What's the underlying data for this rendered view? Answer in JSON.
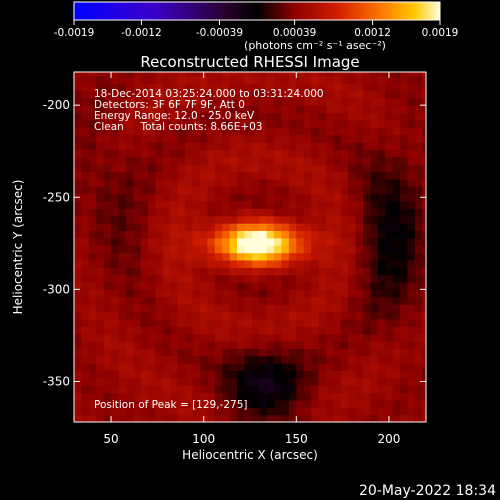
{
  "chart_data": {
    "type": "heatmap",
    "title": "Reconstructed RHESSI Image",
    "xlabel": "Heliocentric X (arcsec)",
    "ylabel": "Heliocentric Y (arcsec)",
    "xlim": [
      30,
      220
    ],
    "ylim": [
      -372,
      -182
    ],
    "xticks": [
      50,
      100,
      150,
      200
    ],
    "yticks": [
      -200,
      -250,
      -300,
      -350
    ],
    "colorbar": {
      "ticks": [
        "-0.0019",
        "-0.0012",
        "-0.00039",
        "0.00039",
        "0.0012",
        "0.0019"
      ],
      "tick_values": [
        -0.0019,
        -0.0012,
        -0.00039,
        0.00039,
        0.0012,
        0.0019
      ],
      "range": [
        -0.0019,
        0.0019
      ],
      "unit": "(photons cm⁻² s⁻¹ asec⁻²)"
    },
    "info_lines": [
      "18-Dec-2014 03:25:24.000 to 03:31:24.000",
      "Detectors: 3F 6F 7F 9F, Att 0",
      "Energy Range: 12.0 - 25.0 keV",
      "Clean     Total counts: 8.66E+03"
    ],
    "peak_label": "Position of Peak = [129,-275]",
    "peak": [
      129,
      -275
    ],
    "footer": "20-May-2022 18:34"
  },
  "colors": {
    "background": "#000000",
    "text": "#ffffff"
  }
}
